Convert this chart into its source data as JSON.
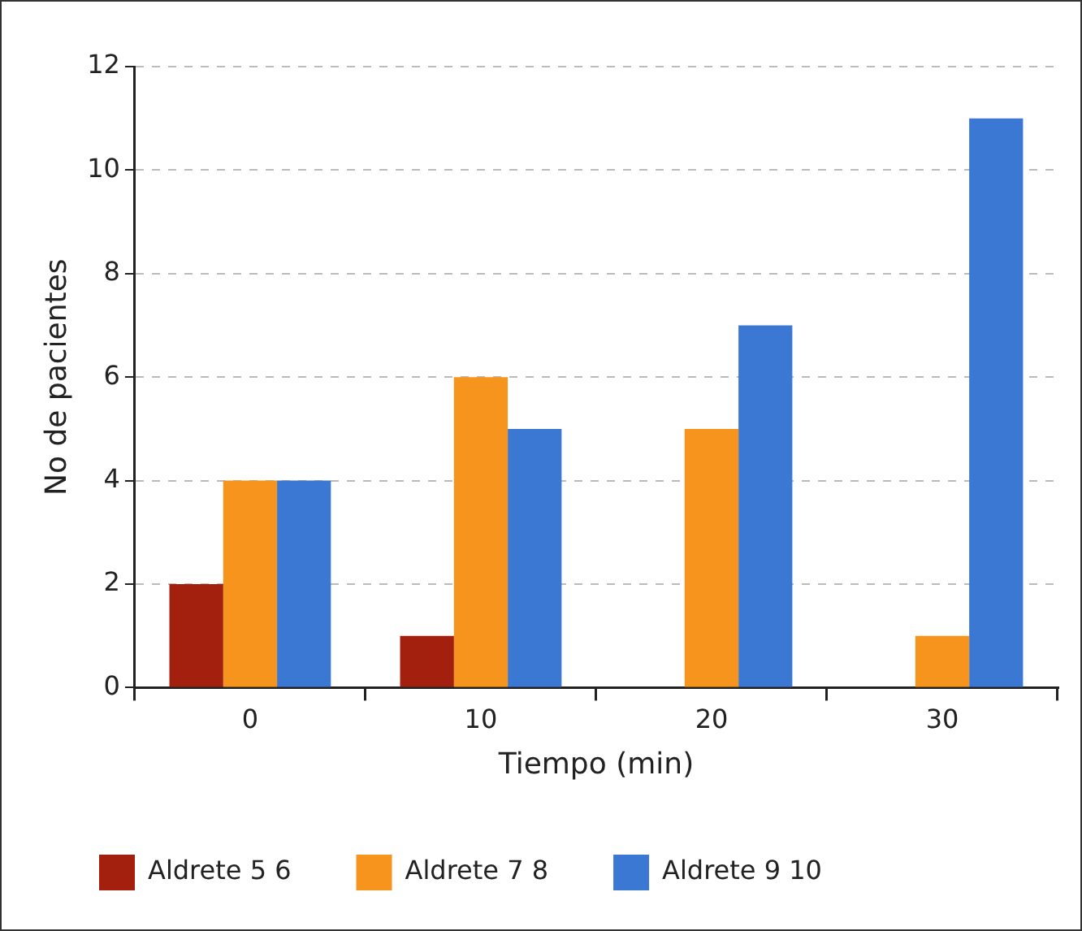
{
  "chart_data": {
    "type": "bar",
    "xlabel": "Tiempo (min)",
    "ylabel": "No de pacientes",
    "categories": [
      "0",
      "10",
      "20",
      "30"
    ],
    "series": [
      {
        "name": "Aldrete 5 6",
        "color": "#a3200f",
        "values": [
          2,
          1,
          0,
          0
        ]
      },
      {
        "name": "Aldrete 7 8",
        "color": "#f7941d",
        "values": [
          4,
          6,
          5,
          1
        ]
      },
      {
        "name": "Aldrete 9 10",
        "color": "#3b78d4",
        "values": [
          4,
          5,
          7,
          11
        ]
      }
    ],
    "ylim": [
      0,
      12
    ],
    "yticks": [
      0,
      2,
      4,
      6,
      8,
      10,
      12
    ],
    "grid": "y",
    "legend": "bottom",
    "line_style": "dashed"
  }
}
